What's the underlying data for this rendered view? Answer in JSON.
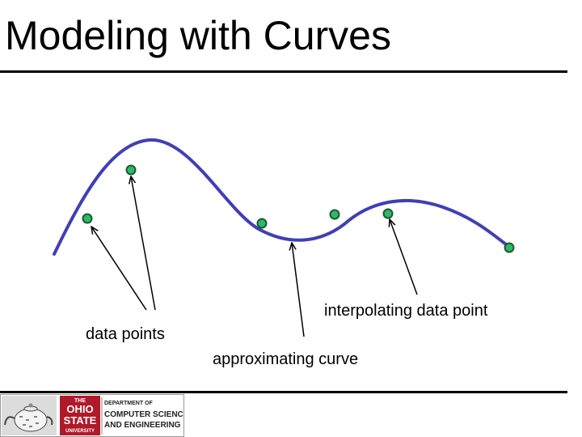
{
  "slide": {
    "title": "Modeling with Curves"
  },
  "diagram": {
    "labels": {
      "data_points": "data points",
      "interpolating": "interpolating data point",
      "approximating": "approximating curve"
    },
    "colors": {
      "curve": "#3f3fb5",
      "point_fill": "#2fb86b",
      "point_stroke": "#1a5a34",
      "arrow": "#000000"
    }
  },
  "footer": {
    "logo_the": "THE",
    "logo_university_line1": "OHIO",
    "logo_university_line2": "STATE",
    "logo_university_line3": "UNIVERSITY",
    "dept_line1": "DEPARTMENT OF",
    "dept_line2": "COMPUTER SCIENCE",
    "dept_line3": "AND ENGINEERING",
    "colors": {
      "seal": "#b0192a"
    }
  }
}
